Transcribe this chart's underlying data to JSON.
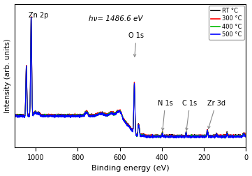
{
  "title": "",
  "xlabel": "Binding energy (eV)",
  "ylabel": "Intensity (arb. units)",
  "hv_label": "hν= 1486.6 eV",
  "xlim": [
    1100,
    0
  ],
  "legend_entries": [
    {
      "label": "RT °C",
      "color": "#000000"
    },
    {
      "label": "300 °C",
      "color": "#ff0000"
    },
    {
      "label": "400 °C",
      "color": "#00bb00"
    },
    {
      "label": "500 °C",
      "color": "#0000ff"
    }
  ],
  "xticks": [
    1000,
    800,
    600,
    400,
    200,
    0
  ],
  "background_color": "#ffffff"
}
